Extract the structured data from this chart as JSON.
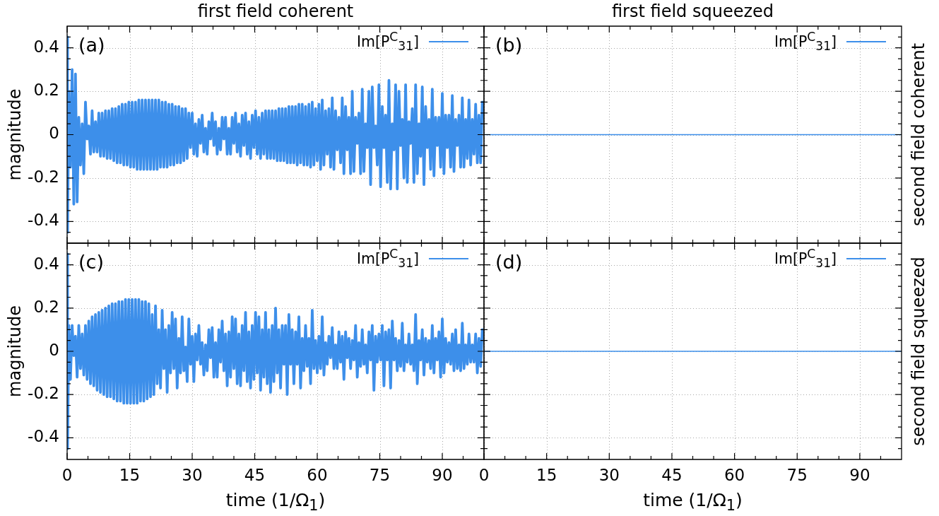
{
  "chart_data": [
    {
      "type": "line",
      "title": "first field coherent",
      "ylabel": "magnitude",
      "annotations": [
        "(a)"
      ],
      "legend": "top right",
      "grid": true,
      "tick_labels": "y",
      "xlim": [
        0,
        100
      ],
      "ylim": [
        -0.5,
        0.5
      ],
      "xticks": [
        0,
        {
          "value": 5,
          "label": null
        },
        {
          "value": 10,
          "label": null
        },
        15,
        {
          "value": 20,
          "label": null
        },
        {
          "value": 25,
          "label": null
        },
        30,
        {
          "value": 35,
          "label": null
        },
        {
          "value": 40,
          "label": null
        },
        45,
        {
          "value": 50,
          "label": null
        },
        {
          "value": 55,
          "label": null
        },
        60,
        {
          "value": 65,
          "label": null
        },
        {
          "value": 70,
          "label": null
        },
        75,
        {
          "value": 80,
          "label": null
        },
        {
          "value": 85,
          "label": null
        },
        90,
        {
          "value": 95,
          "label": null
        }
      ],
      "yticks": [
        {
          "value": -0.45,
          "label": null
        },
        -0.4,
        {
          "value": -0.35,
          "label": null
        },
        {
          "value": -0.3,
          "label": null
        },
        {
          "value": -0.25,
          "label": null
        },
        -0.2,
        {
          "value": -0.15,
          "label": null
        },
        {
          "value": -0.1,
          "label": null
        },
        {
          "value": -0.05,
          "label": null
        },
        0,
        {
          "value": 0.05,
          "label": null
        },
        {
          "value": 0.1,
          "label": null
        },
        {
          "value": 0.15,
          "label": null
        },
        0.2,
        {
          "value": 0.25,
          "label": null
        },
        {
          "value": 0.3,
          "label": null
        },
        {
          "value": 0.35,
          "label": null
        },
        0.4,
        {
          "value": 0.45,
          "label": null
        }
      ],
      "x": [
        0,
        0.1,
        0.4,
        0.8,
        1.2,
        1.6,
        2.0,
        2.4,
        2.8,
        3.2,
        3.6,
        4.0,
        4.4,
        4.8,
        5.2,
        5.6,
        6.0,
        6.4,
        6.8,
        7.2,
        7.6,
        8.0,
        8.4,
        8.8,
        9.2,
        9.6,
        10.0,
        10.4,
        10.8,
        11.2,
        11.6,
        12.0,
        12.4,
        12.8,
        13.2,
        13.6,
        14.0,
        14.4,
        14.8,
        15.2,
        15.6,
        16.0,
        16.4,
        16.8,
        17.2,
        17.6,
        18.0,
        18.4,
        18.8,
        19.2,
        19.6,
        20.0,
        20.4,
        20.8,
        21.2,
        21.6,
        22.0,
        22.4,
        22.8,
        23.2,
        23.6,
        24.0,
        24.4,
        24.8,
        25.2,
        25.6,
        26.0,
        26.4,
        26.8,
        27.2,
        27.6,
        28.0,
        28.4,
        28.8,
        29.2,
        29.6,
        30.0,
        30.4,
        30.8,
        31.2,
        31.6,
        32.0,
        32.4,
        32.8,
        33.2,
        33.6,
        34.0,
        34.4,
        34.8,
        35.2,
        35.6,
        36.0,
        36.4,
        36.8,
        37.2,
        37.6,
        38.0,
        38.4,
        38.8,
        39.2,
        39.6,
        40.0,
        40.4,
        40.8,
        41.2,
        41.6,
        42.0,
        42.4,
        42.8,
        43.2,
        43.6,
        44.0,
        44.4,
        44.8,
        45.2,
        45.6,
        46.0,
        46.4,
        46.8,
        47.2,
        47.6,
        48.0,
        48.4,
        48.8,
        49.2,
        49.6,
        50.0,
        50.4,
        50.8,
        51.2,
        51.6,
        52.0,
        52.4,
        52.8,
        53.2,
        53.6,
        54.0,
        54.4,
        54.8,
        55.2,
        55.6,
        56.0,
        56.4,
        56.8,
        57.2,
        57.6,
        58.0,
        58.4,
        58.8,
        59.2,
        59.6,
        60.0,
        60.4,
        60.8,
        61.2,
        61.6,
        62.0,
        62.4,
        62.8,
        63.2,
        63.6,
        64.0,
        64.4,
        64.8,
        65.2,
        65.6,
        66.0,
        66.4,
        66.8,
        67.2,
        67.6,
        68.0,
        68.4,
        68.8,
        69.2,
        69.6,
        70.0,
        70.4,
        70.8,
        71.2,
        71.6,
        72.0,
        72.4,
        72.8,
        73.2,
        73.6,
        74.0,
        74.4,
        74.8,
        75.2,
        75.6,
        76.0,
        76.4,
        76.8,
        77.2,
        77.6,
        78.0,
        78.4,
        78.8,
        79.2,
        79.6,
        80.0,
        80.4,
        80.8,
        81.2,
        81.6,
        82.0,
        82.4,
        82.8,
        83.2,
        83.6,
        84.0,
        84.4,
        84.8,
        85.2,
        85.6,
        86.0,
        86.4,
        86.8,
        87.2,
        87.6,
        88.0,
        88.4,
        88.8,
        89.2,
        89.6,
        90.0,
        90.4,
        90.8,
        91.2,
        91.6,
        92.0,
        92.4,
        92.8,
        93.2,
        93.6,
        94.0,
        94.4,
        94.8,
        95.2,
        95.6,
        96.0,
        96.4,
        96.8,
        97.2,
        97.6,
        98.0,
        98.4,
        98.8,
        99.2,
        99.6
      ],
      "series": [
        {
          "name": "Im[P$^{C}$$_{31}$]",
          "color": "#3d8fea",
          "values": [
            0.45,
            -0.45,
            0.2,
            -0.15,
            0.3,
            -0.32,
            0.28,
            -0.31,
            0.08,
            -0.14,
            0.05,
            -0.18,
            0.15,
            -0.02,
            0.04,
            -0.09,
            0.11,
            -0.08,
            0.06,
            -0.08,
            0.1,
            -0.1,
            0.1,
            -0.1,
            0.11,
            -0.11,
            0.11,
            -0.11,
            0.12,
            -0.12,
            0.12,
            -0.13,
            0.13,
            -0.13,
            0.14,
            -0.14,
            0.14,
            -0.14,
            0.15,
            -0.15,
            0.15,
            -0.15,
            0.15,
            -0.16,
            0.16,
            -0.16,
            0.16,
            -0.16,
            0.16,
            -0.16,
            0.16,
            -0.16,
            0.16,
            -0.16,
            0.16,
            -0.16,
            0.16,
            -0.15,
            0.15,
            -0.15,
            0.15,
            -0.15,
            0.14,
            -0.14,
            0.14,
            -0.14,
            0.13,
            -0.13,
            0.13,
            -0.13,
            0.12,
            -0.12,
            0.12,
            -0.11,
            0.1,
            -0.06,
            0.1,
            -0.09,
            0.05,
            -0.1,
            0.07,
            -0.04,
            0.09,
            -0.08,
            0.03,
            -0.09,
            0.06,
            -0.02,
            0.1,
            -0.05,
            0.06,
            -0.09,
            0.03,
            -0.07,
            0.08,
            -0.02,
            0.08,
            -0.09,
            0.03,
            -0.09,
            0.08,
            -0.04,
            0.1,
            -0.08,
            0.05,
            -0.1,
            0.09,
            -0.05,
            0.1,
            -0.09,
            0.06,
            -0.11,
            0.09,
            -0.06,
            0.11,
            -0.09,
            0.08,
            -0.11,
            0.1,
            -0.09,
            0.11,
            -0.11,
            0.11,
            -0.11,
            0.11,
            -0.11,
            0.11,
            -0.12,
            0.12,
            -0.12,
            0.12,
            -0.12,
            0.12,
            -0.13,
            0.13,
            -0.13,
            0.13,
            -0.13,
            0.13,
            -0.14,
            0.14,
            -0.13,
            0.14,
            -0.14,
            0.13,
            -0.14,
            0.14,
            -0.15,
            0.15,
            -0.14,
            0.12,
            -0.12,
            0.14,
            -0.16,
            0.16,
            -0.14,
            0.11,
            -0.09,
            0.12,
            -0.15,
            0.17,
            -0.16,
            0.11,
            -0.07,
            0.08,
            -0.13,
            0.17,
            -0.18,
            0.13,
            -0.07,
            0.08,
            -0.18,
            0.2,
            -0.17,
            0.08,
            -0.04,
            0.1,
            -0.18,
            0.21,
            -0.17,
            0.05,
            -0.06,
            0.2,
            -0.23,
            0.22,
            -0.06,
            0.04,
            -0.14,
            0.23,
            -0.24,
            0.13,
            -0.06,
            0.09,
            -0.22,
            0.25,
            -0.25,
            0.05,
            -0.07,
            0.23,
            -0.25,
            0.2,
            -0.05,
            0.07,
            -0.2,
            0.23,
            -0.22,
            0.06,
            -0.04,
            0.12,
            -0.22,
            0.23,
            -0.18,
            0.05,
            -0.1,
            0.22,
            -0.23,
            0.13,
            -0.06,
            0.07,
            -0.16,
            0.21,
            -0.19,
            0.08,
            -0.05,
            0.08,
            -0.15,
            0.19,
            -0.18,
            0.09,
            -0.06,
            0.09,
            -0.15,
            0.18,
            -0.17,
            0.07,
            -0.05,
            0.09,
            -0.15,
            0.17,
            -0.15,
            0.07,
            -0.11,
            0.16,
            -0.14,
            0.07,
            -0.09,
            0.14,
            -0.13,
            0.09,
            -0.13,
            0.15
          ]
        }
      ]
    },
    {
      "type": "line",
      "title": "first field squeezed",
      "y2label": "second field coherent",
      "annotations": [
        "(b)"
      ],
      "legend": "top right",
      "grid": true,
      "tick_labels": false,
      "xlim": [
        0,
        100
      ],
      "ylim": [
        -0.5,
        0.5
      ],
      "xticks": [
        0,
        {
          "value": 5,
          "label": null
        },
        {
          "value": 10,
          "label": null
        },
        15,
        {
          "value": 20,
          "label": null
        },
        {
          "value": 25,
          "label": null
        },
        30,
        {
          "value": 35,
          "label": null
        },
        {
          "value": 40,
          "label": null
        },
        45,
        {
          "value": 50,
          "label": null
        },
        {
          "value": 55,
          "label": null
        },
        60,
        {
          "value": 65,
          "label": null
        },
        {
          "value": 70,
          "label": null
        },
        75,
        {
          "value": 80,
          "label": null
        },
        {
          "value": 85,
          "label": null
        },
        90,
        {
          "value": 95,
          "label": null
        }
      ],
      "yticks": [
        {
          "value": -0.45,
          "label": null
        },
        -0.4,
        {
          "value": -0.35,
          "label": null
        },
        {
          "value": -0.3,
          "label": null
        },
        {
          "value": -0.25,
          "label": null
        },
        -0.2,
        {
          "value": -0.15,
          "label": null
        },
        {
          "value": -0.1,
          "label": null
        },
        {
          "value": -0.05,
          "label": null
        },
        0,
        {
          "value": 0.05,
          "label": null
        },
        {
          "value": 0.1,
          "label": null
        },
        {
          "value": 0.15,
          "label": null
        },
        0.2,
        {
          "value": 0.25,
          "label": null
        },
        {
          "value": 0.3,
          "label": null
        },
        {
          "value": 0.35,
          "label": null
        },
        0.4,
        {
          "value": 0.45,
          "label": null
        }
      ],
      "x": [
        0,
        100
      ],
      "series": [
        {
          "name": "Im[P$^{C}$$_{31}$]",
          "color": "#3d8fea",
          "values": [
            0,
            0
          ]
        }
      ]
    },
    {
      "type": "line",
      "xlabel": "time (1/Ω$_{1}$)",
      "ylabel": "magnitude",
      "annotations": [
        "(c)"
      ],
      "legend": "top right",
      "grid": true,
      "xlim": [
        0,
        100
      ],
      "ylim": [
        -0.5,
        0.5
      ],
      "xticks": [
        0,
        {
          "value": 5,
          "label": null
        },
        {
          "value": 10,
          "label": null
        },
        15,
        {
          "value": 20,
          "label": null
        },
        {
          "value": 25,
          "label": null
        },
        30,
        {
          "value": 35,
          "label": null
        },
        {
          "value": 40,
          "label": null
        },
        45,
        {
          "value": 50,
          "label": null
        },
        {
          "value": 55,
          "label": null
        },
        60,
        {
          "value": 65,
          "label": null
        },
        {
          "value": 70,
          "label": null
        },
        75,
        {
          "value": 80,
          "label": null
        },
        {
          "value": 85,
          "label": null
        },
        90,
        {
          "value": 95,
          "label": null
        }
      ],
      "yticks": [
        {
          "value": -0.45,
          "label": null
        },
        -0.4,
        {
          "value": -0.35,
          "label": null
        },
        {
          "value": -0.3,
          "label": null
        },
        {
          "value": -0.25,
          "label": null
        },
        -0.2,
        {
          "value": -0.15,
          "label": null
        },
        {
          "value": -0.1,
          "label": null
        },
        {
          "value": -0.05,
          "label": null
        },
        0,
        {
          "value": 0.05,
          "label": null
        },
        {
          "value": 0.1,
          "label": null
        },
        {
          "value": 0.15,
          "label": null
        },
        0.2,
        {
          "value": 0.25,
          "label": null
        },
        {
          "value": 0.3,
          "label": null
        },
        {
          "value": 0.35,
          "label": null
        },
        0.4,
        {
          "value": 0.45,
          "label": null
        }
      ],
      "x": [
        0,
        0.1,
        0.4,
        0.8,
        1.2,
        1.6,
        2.0,
        2.4,
        2.8,
        3.2,
        3.6,
        4.0,
        4.4,
        4.8,
        5.2,
        5.6,
        6.0,
        6.4,
        6.8,
        7.2,
        7.6,
        8.0,
        8.4,
        8.8,
        9.2,
        9.6,
        10.0,
        10.4,
        10.8,
        11.2,
        11.6,
        12.0,
        12.4,
        12.8,
        13.2,
        13.6,
        14.0,
        14.4,
        14.8,
        15.2,
        15.6,
        16.0,
        16.4,
        16.8,
        17.2,
        17.6,
        18.0,
        18.4,
        18.8,
        19.2,
        19.6,
        20.0,
        20.4,
        20.8,
        21.2,
        21.6,
        22.0,
        22.4,
        22.8,
        23.2,
        23.6,
        24.0,
        24.4,
        24.8,
        25.2,
        25.6,
        26.0,
        26.4,
        26.8,
        27.2,
        27.6,
        28.0,
        28.4,
        28.8,
        29.2,
        29.6,
        30.0,
        30.4,
        30.8,
        31.2,
        31.6,
        32.0,
        32.4,
        32.8,
        33.2,
        33.6,
        34.0,
        34.4,
        34.8,
        35.2,
        35.6,
        36.0,
        36.4,
        36.8,
        37.2,
        37.6,
        38.0,
        38.4,
        38.8,
        39.2,
        39.6,
        40.0,
        40.4,
        40.8,
        41.2,
        41.6,
        42.0,
        42.4,
        42.8,
        43.2,
        43.6,
        44.0,
        44.4,
        44.8,
        45.2,
        45.6,
        46.0,
        46.4,
        46.8,
        47.2,
        47.6,
        48.0,
        48.4,
        48.8,
        49.2,
        49.6,
        50.0,
        50.4,
        50.8,
        51.2,
        51.6,
        52.0,
        52.4,
        52.8,
        53.2,
        53.6,
        54.0,
        54.4,
        54.8,
        55.2,
        55.6,
        56.0,
        56.4,
        56.8,
        57.2,
        57.6,
        58.0,
        58.4,
        58.8,
        59.2,
        59.6,
        60.0,
        60.4,
        60.8,
        61.2,
        61.6,
        62.0,
        62.4,
        62.8,
        63.2,
        63.6,
        64.0,
        64.4,
        64.8,
        65.2,
        65.6,
        66.0,
        66.4,
        66.8,
        67.2,
        67.6,
        68.0,
        68.4,
        68.8,
        69.2,
        69.6,
        70.0,
        70.4,
        70.8,
        71.2,
        71.6,
        72.0,
        72.4,
        72.8,
        73.2,
        73.6,
        74.0,
        74.4,
        74.8,
        75.2,
        75.6,
        76.0,
        76.4,
        76.8,
        77.2,
        77.6,
        78.0,
        78.4,
        78.8,
        79.2,
        79.6,
        80.0,
        80.4,
        80.8,
        81.2,
        81.6,
        82.0,
        82.4,
        82.8,
        83.2,
        83.6,
        84.0,
        84.4,
        84.8,
        85.2,
        85.6,
        86.0,
        86.4,
        86.8,
        87.2,
        87.6,
        88.0,
        88.4,
        88.8,
        89.2,
        89.6,
        90.0,
        90.4,
        90.8,
        91.2,
        91.6,
        92.0,
        92.4,
        92.8,
        93.2,
        93.6,
        94.0,
        94.4,
        94.8,
        95.2,
        95.6,
        96.0,
        96.4,
        96.8,
        97.2,
        97.6,
        98.0,
        98.4,
        98.8,
        99.2,
        99.6
      ],
      "series": [
        {
          "name": "Im[P$^{C}$$_{31}$]",
          "color": "#3d8fea",
          "values": [
            0.45,
            -0.45,
            0.12,
            -0.13,
            0.12,
            -0.02,
            0.07,
            -0.12,
            0.12,
            -0.08,
            0.08,
            -0.11,
            0.12,
            -0.13,
            0.14,
            -0.15,
            0.16,
            -0.16,
            0.17,
            -0.18,
            0.18,
            -0.19,
            0.19,
            -0.2,
            0.2,
            -0.21,
            0.21,
            -0.21,
            0.22,
            -0.22,
            0.22,
            -0.23,
            0.23,
            -0.23,
            0.23,
            -0.24,
            0.24,
            -0.24,
            0.24,
            -0.24,
            0.24,
            -0.24,
            0.24,
            -0.24,
            0.24,
            -0.23,
            0.23,
            -0.23,
            0.23,
            -0.22,
            0.22,
            -0.21,
            0.17,
            -0.2,
            0.21,
            -0.15,
            0.1,
            -0.17,
            0.19,
            -0.08,
            0.1,
            -0.19,
            0.12,
            -0.1,
            0.18,
            -0.08,
            0.15,
            -0.17,
            0.06,
            -0.1,
            0.16,
            -0.09,
            0.02,
            -0.14,
            0.15,
            -0.06,
            0.07,
            -0.14,
            0.08,
            -0.04,
            0.12,
            -0.06,
            0.04,
            -0.11,
            0.03,
            -0.09,
            0.1,
            -0.03,
            0.11,
            -0.12,
            0.04,
            -0.12,
            0.1,
            -0.05,
            0.14,
            -0.09,
            0.08,
            -0.16,
            0.09,
            -0.12,
            0.16,
            -0.08,
            0.15,
            -0.15,
            0.08,
            -0.16,
            0.12,
            -0.09,
            0.18,
            -0.14,
            0.09,
            -0.17,
            0.12,
            -0.13,
            0.18,
            -0.1,
            0.16,
            -0.18,
            0.1,
            -0.12,
            0.18,
            -0.15,
            0.1,
            -0.19,
            0.12,
            -0.14,
            0.2,
            -0.1,
            0.1,
            -0.17,
            0.12,
            -0.06,
            0.12,
            -0.2,
            0.17,
            -0.06,
            0.1,
            -0.15,
            0.09,
            -0.06,
            0.16,
            -0.17,
            0.06,
            -0.09,
            0.12,
            -0.07,
            0.06,
            -0.15,
            0.19,
            -0.08,
            0.05,
            -0.1,
            0.07,
            -0.08,
            0.16,
            -0.11,
            0.04,
            -0.06,
            0.07,
            -0.03,
            0.11,
            -0.08,
            0.03,
            -0.08,
            0.09,
            -0.05,
            0.07,
            -0.13,
            0.09,
            -0.03,
            0.06,
            -0.08,
            0.05,
            -0.04,
            0.12,
            -0.12,
            0.04,
            -0.07,
            0.1,
            -0.06,
            0.03,
            -0.1,
            0.09,
            -0.04,
            0.12,
            -0.18,
            0.07,
            -0.05,
            0.08,
            -0.04,
            0.12,
            -0.16,
            0.09,
            -0.04,
            0.1,
            -0.17,
            0.14,
            -0.04,
            0.06,
            -0.09,
            0.05,
            -0.07,
            0.13,
            -0.09,
            0.03,
            -0.05,
            0.08,
            -0.06,
            0.03,
            -0.09,
            0.17,
            -0.15,
            0.05,
            -0.04,
            0.1,
            -0.11,
            0.06,
            -0.05,
            0.05,
            -0.08,
            0.12,
            -0.1,
            0.06,
            -0.04,
            0.09,
            -0.12,
            0.15,
            -0.1,
            0.06,
            -0.05,
            0.04,
            -0.06,
            0.08,
            -0.09,
            0.1,
            -0.08,
            0.03,
            -0.09,
            0.13,
            -0.08,
            0.03,
            -0.06,
            0.08,
            -0.05,
            0.03,
            -0.05,
            0.08,
            -0.1,
            0.06,
            -0.07,
            0.1
          ]
        }
      ]
    },
    {
      "type": "line",
      "xlabel": "time (1/Ω$_{1}$)",
      "y2label": "second field squeezed",
      "annotations": [
        "(d)"
      ],
      "legend": "top right",
      "grid": true,
      "tick_labels": "x",
      "xlim": [
        0,
        100
      ],
      "ylim": [
        -0.5,
        0.5
      ],
      "xticks": [
        0,
        {
          "value": 5,
          "label": null
        },
        {
          "value": 10,
          "label": null
        },
        15,
        {
          "value": 20,
          "label": null
        },
        {
          "value": 25,
          "label": null
        },
        30,
        {
          "value": 35,
          "label": null
        },
        {
          "value": 40,
          "label": null
        },
        45,
        {
          "value": 50,
          "label": null
        },
        {
          "value": 55,
          "label": null
        },
        60,
        {
          "value": 65,
          "label": null
        },
        {
          "value": 70,
          "label": null
        },
        75,
        {
          "value": 80,
          "label": null
        },
        {
          "value": 85,
          "label": null
        },
        90,
        {
          "value": 95,
          "label": null
        }
      ],
      "yticks": [
        {
          "value": -0.45,
          "label": null
        },
        -0.4,
        {
          "value": -0.35,
          "label": null
        },
        {
          "value": -0.3,
          "label": null
        },
        {
          "value": -0.25,
          "label": null
        },
        -0.2,
        {
          "value": -0.15,
          "label": null
        },
        {
          "value": -0.1,
          "label": null
        },
        {
          "value": -0.05,
          "label": null
        },
        0,
        {
          "value": 0.05,
          "label": null
        },
        {
          "value": 0.1,
          "label": null
        },
        {
          "value": 0.15,
          "label": null
        },
        0.2,
        {
          "value": 0.25,
          "label": null
        },
        {
          "value": 0.3,
          "label": null
        },
        {
          "value": 0.35,
          "label": null
        },
        0.4,
        {
          "value": 0.45,
          "label": null
        }
      ],
      "x": [
        0,
        100
      ],
      "series": [
        {
          "name": "Im[P$^{C}$$_{31}$]",
          "color": "#3d8fea",
          "values": [
            0,
            0
          ]
        }
      ]
    }
  ]
}
